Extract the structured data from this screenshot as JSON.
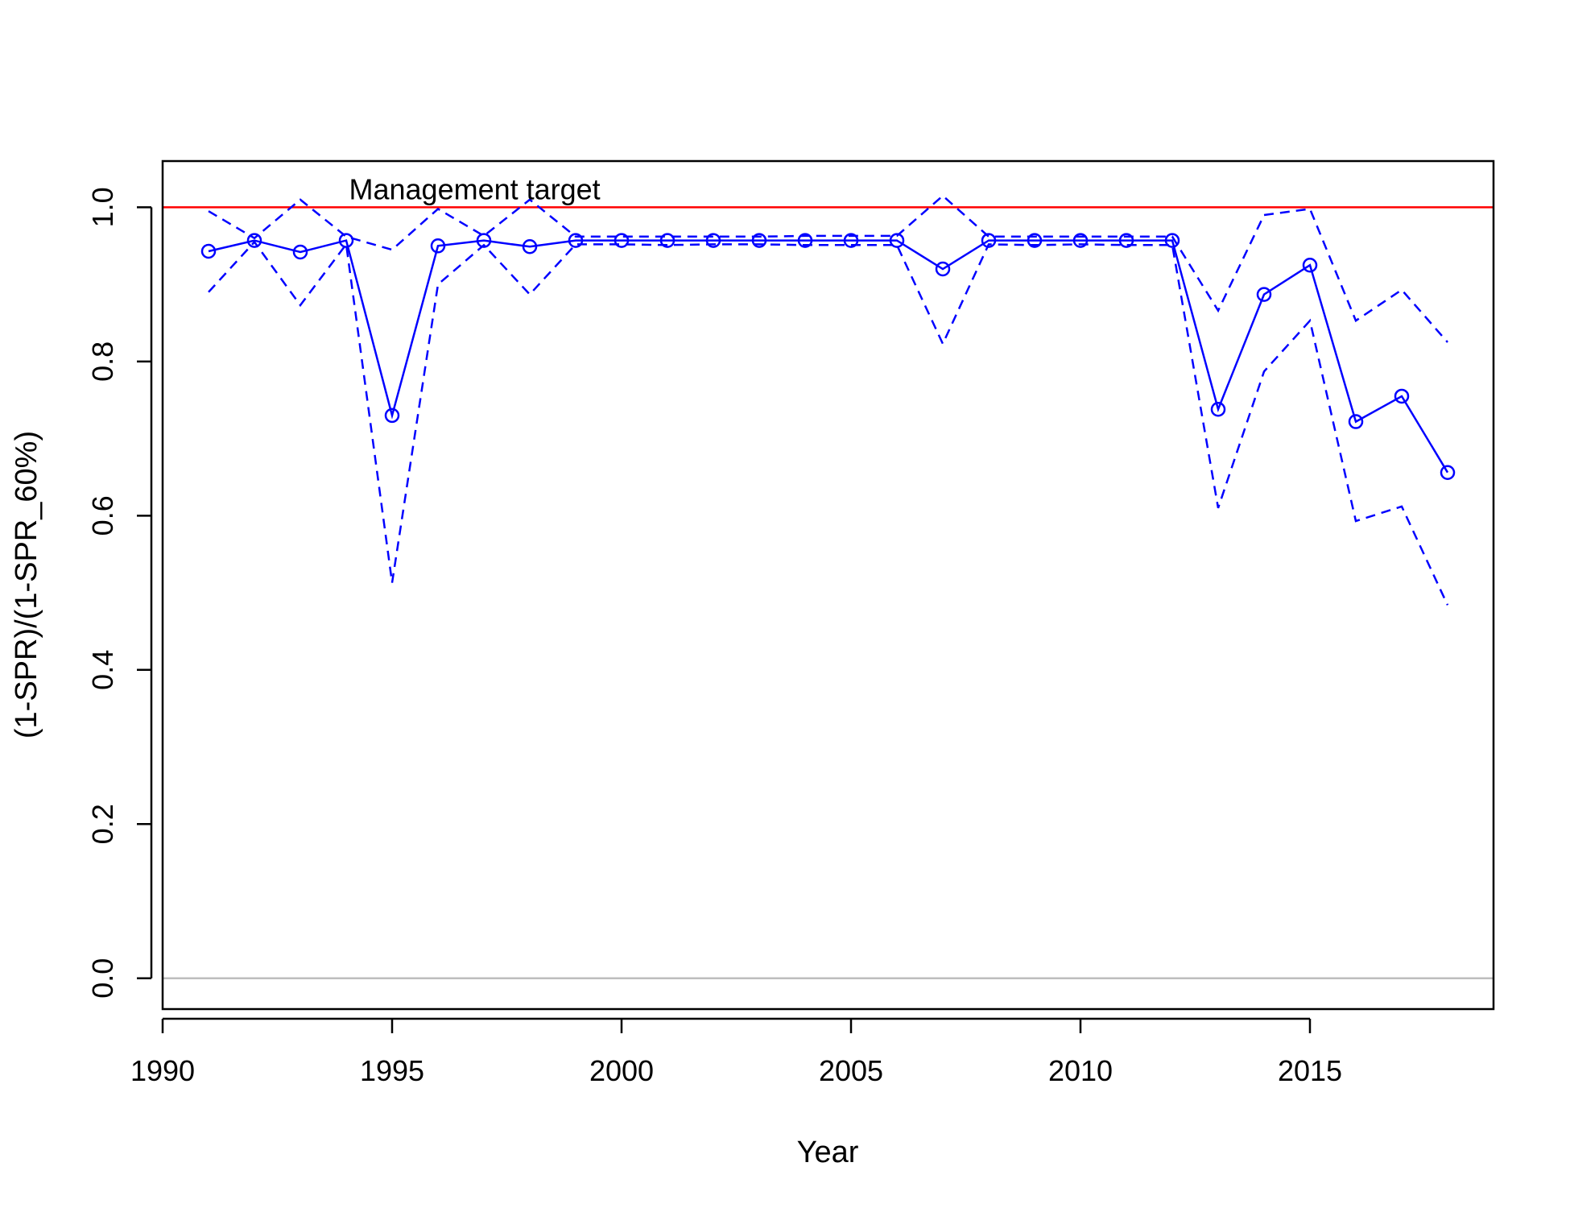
{
  "chart_data": {
    "type": "line",
    "title": "",
    "xlabel": "Year",
    "ylabel": "(1-SPR)/(1-SPR_60%)",
    "xlim": [
      1990,
      2019
    ],
    "ylim": [
      -0.04,
      1.06
    ],
    "x_ticks": [
      1990,
      1995,
      2000,
      2005,
      2010,
      2015
    ],
    "y_ticks": [
      0.0,
      0.2,
      0.4,
      0.6,
      0.8,
      1.0
    ],
    "y_tick_labels": [
      "0.0",
      "0.2",
      "0.4",
      "0.6",
      "0.8",
      "1.0"
    ],
    "x": [
      1991,
      1992,
      1993,
      1994,
      1995,
      1996,
      1997,
      1998,
      1999,
      2000,
      2001,
      2002,
      2003,
      2004,
      2005,
      2006,
      2007,
      2008,
      2009,
      2010,
      2011,
      2012,
      2013,
      2014,
      2015,
      2016,
      2017,
      2018
    ],
    "series": [
      {
        "style": "solid-with-circles",
        "values": [
          0.943,
          0.957,
          0.942,
          0.957,
          0.73,
          0.95,
          0.957,
          0.949,
          0.957,
          0.957,
          0.957,
          0.957,
          0.957,
          0.957,
          0.957,
          0.957,
          0.92,
          0.957,
          0.957,
          0.957,
          0.957,
          0.957,
          0.738,
          0.887,
          0.925,
          0.722,
          0.755,
          0.656
        ]
      },
      {
        "style": "dashed",
        "values": [
          0.995,
          0.96,
          1.01,
          0.962,
          0.945,
          0.998,
          0.963,
          1.01,
          0.962,
          0.962,
          0.962,
          0.962,
          0.962,
          0.963,
          0.963,
          0.963,
          1.015,
          0.962,
          0.962,
          0.962,
          0.962,
          0.962,
          0.866,
          0.99,
          0.998,
          0.853,
          0.893,
          0.825
        ]
      },
      {
        "style": "dashed",
        "values": [
          0.89,
          0.955,
          0.873,
          0.952,
          0.513,
          0.9,
          0.951,
          0.887,
          0.952,
          0.952,
          0.951,
          0.952,
          0.952,
          0.951,
          0.951,
          0.951,
          0.823,
          0.952,
          0.951,
          0.952,
          0.951,
          0.951,
          0.61,
          0.787,
          0.853,
          0.593,
          0.612,
          0.484
        ]
      }
    ],
    "reference_lines": [
      {
        "y": 1.0,
        "color": "#ff0000"
      },
      {
        "y": 0.0,
        "color": "#bebebe"
      }
    ],
    "annotations": [
      {
        "text": "Management target",
        "x": 1996.8,
        "y": 1.0
      }
    ],
    "colors": {
      "series": "#0000ff",
      "target": "#ff0000",
      "zero": "#bebebe"
    },
    "grid": false,
    "legend": "none"
  }
}
